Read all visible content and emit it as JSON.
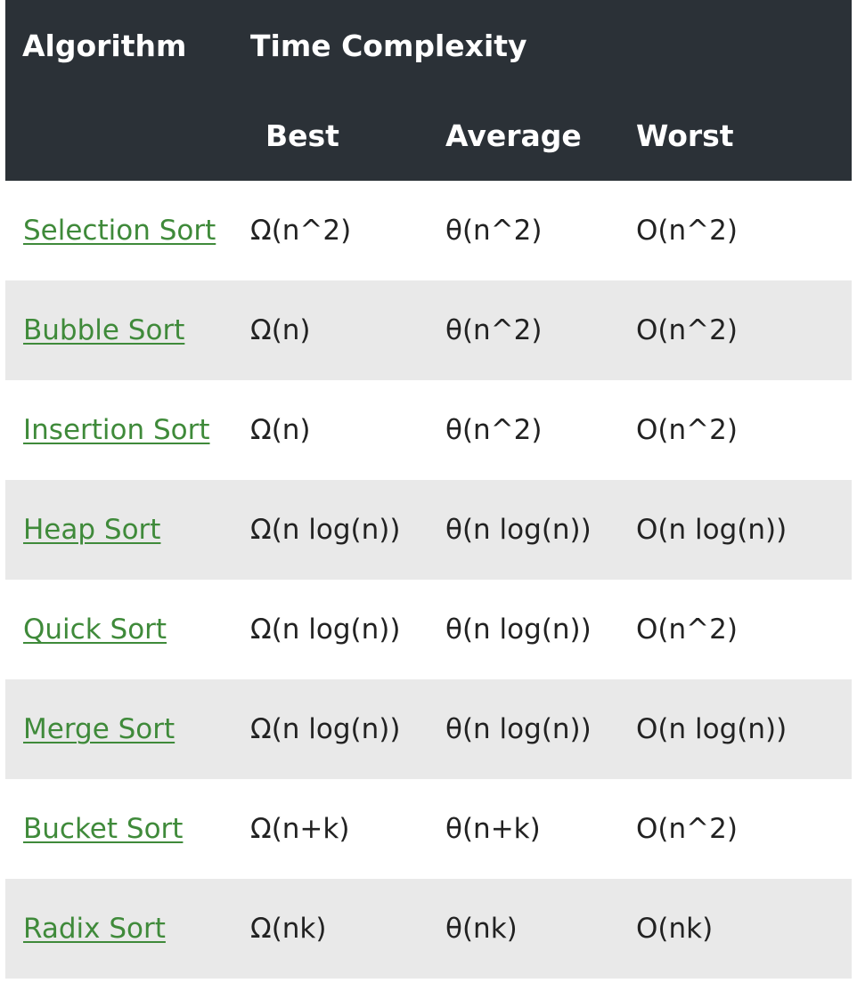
{
  "header": {
    "algorithm": "Algorithm",
    "time_complexity": "Time Complexity",
    "best": "Best",
    "average": "Average",
    "worst": "Worst"
  },
  "colors": {
    "header_bg": "#2b3137",
    "link": "#3f8a3a",
    "stripe": "#e9e9e9"
  },
  "rows": [
    {
      "name": "Selection Sort",
      "best": "Ω(n^2)",
      "average": "θ(n^2)",
      "worst": "O(n^2)"
    },
    {
      "name": "Bubble Sort",
      "best": "Ω(n)",
      "average": "θ(n^2)",
      "worst": "O(n^2)"
    },
    {
      "name": "Insertion Sort",
      "best": "Ω(n)",
      "average": "θ(n^2)",
      "worst": "O(n^2)"
    },
    {
      "name": "Heap Sort",
      "best": "Ω(n log(n))",
      "average": "θ(n log(n))",
      "worst": "O(n log(n))"
    },
    {
      "name": "Quick Sort",
      "best": "Ω(n log(n))",
      "average": "θ(n log(n))",
      "worst": "O(n^2)"
    },
    {
      "name": "Merge Sort",
      "best": "Ω(n log(n))",
      "average": "θ(n log(n))",
      "worst": "O(n log(n))"
    },
    {
      "name": "Bucket Sort",
      "best": "Ω(n+k)",
      "average": "θ(n+k)",
      "worst": "O(n^2)"
    },
    {
      "name": "Radix Sort",
      "best": "Ω(nk)",
      "average": "θ(nk)",
      "worst": "O(nk)"
    }
  ]
}
